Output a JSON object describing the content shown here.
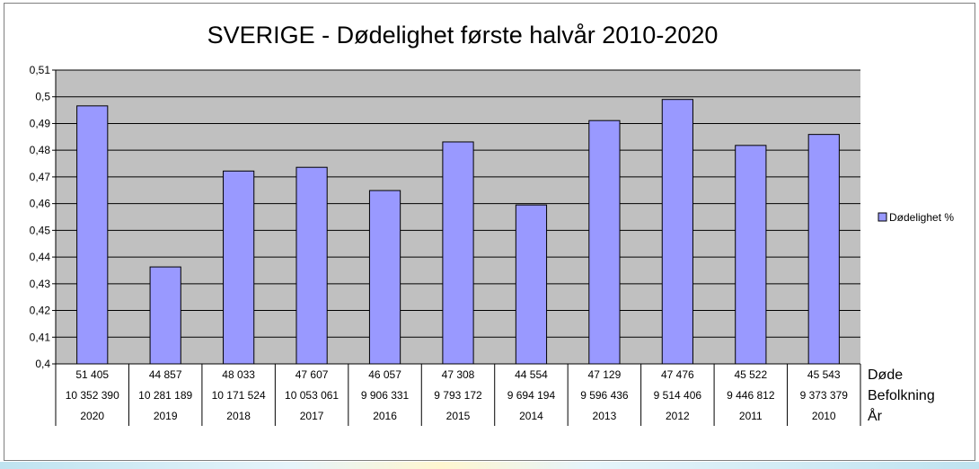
{
  "chart_data": {
    "type": "bar",
    "title": "SVERIGE - Dødelighet første halvår 2010-2020",
    "ylim": [
      0.4,
      0.51
    ],
    "yticks": [
      "0,4",
      "0,41",
      "0,42",
      "0,43",
      "0,44",
      "0,45",
      "0,46",
      "0,47",
      "0,48",
      "0,49",
      "0,5",
      "0,51"
    ],
    "grid": true,
    "legend_position": "right",
    "bar_color": "#9999ff",
    "plot_background": "#c0c0c0",
    "categories": [
      "2020",
      "2019",
      "2018",
      "2017",
      "2016",
      "2015",
      "2014",
      "2013",
      "2012",
      "2011",
      "2010"
    ],
    "series": [
      {
        "name": "Dødelighet %",
        "values": [
          0.4966,
          0.4363,
          0.4722,
          0.4736,
          0.4649,
          0.4831,
          0.4595,
          0.4911,
          0.499,
          0.4818,
          0.4859
        ]
      }
    ],
    "table": {
      "row_labels": [
        "Døde",
        "Befolkning",
        "År"
      ],
      "rows": [
        [
          "51 405",
          "44 857",
          "48 033",
          "47 607",
          "46 057",
          "47 308",
          "44 554",
          "47 129",
          "47 476",
          "45 522",
          "45 543"
        ],
        [
          "10 352 390",
          "10 281 189",
          "10 171 524",
          "10 053 061",
          "9 906 331",
          "9 793 172",
          "9 694 194",
          "9 596 436",
          "9 514 406",
          "9 446 812",
          "9 373 379"
        ],
        [
          "2020",
          "2019",
          "2018",
          "2017",
          "2016",
          "2015",
          "2014",
          "2013",
          "2012",
          "2011",
          "2010"
        ]
      ]
    }
  }
}
